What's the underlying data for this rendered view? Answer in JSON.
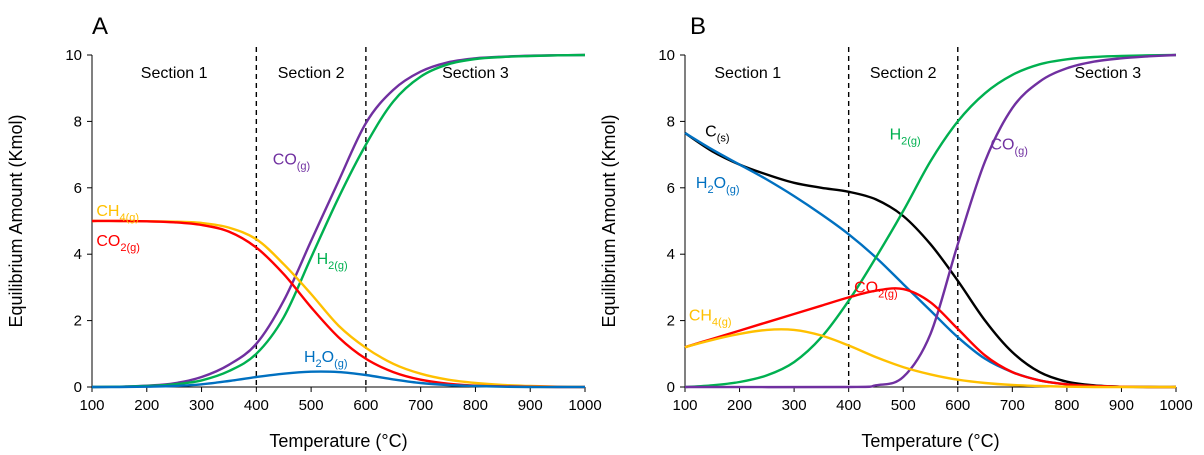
{
  "figure": {
    "background": "#ffffff"
  },
  "chart_data": [
    {
      "type": "line",
      "panel": "A",
      "xlabel": "Temperature (°C)",
      "ylabel": "Equilibrium Amount (Kmol)",
      "xlim": [
        100,
        1000
      ],
      "ylim": [
        0,
        10
      ],
      "xticks": [
        100,
        200,
        300,
        400,
        500,
        600,
        700,
        800,
        900,
        1000
      ],
      "yticks": [
        0,
        2,
        4,
        6,
        8,
        10
      ],
      "grid": false,
      "dividers": [
        400,
        600
      ],
      "sections": [
        {
          "label": "Section 1",
          "x": 250,
          "y": 9.3
        },
        {
          "label": "Section 2",
          "x": 500,
          "y": 9.3
        },
        {
          "label": "Section 3",
          "x": 800,
          "y": 9.3
        }
      ],
      "series": [
        {
          "main": "CO",
          "sub": "(g)",
          "color": "#7030a0",
          "label_pos": [
            430,
            6.7
          ],
          "x": [
            100,
            150,
            200,
            250,
            300,
            350,
            400,
            450,
            500,
            550,
            600,
            650,
            700,
            750,
            800,
            850,
            900,
            950,
            1000
          ],
          "y": [
            0,
            0.01,
            0.04,
            0.11,
            0.3,
            0.67,
            1.3,
            2.6,
            4.4,
            6.2,
            7.95,
            8.95,
            9.5,
            9.78,
            9.9,
            9.95,
            9.98,
            9.99,
            10
          ]
        },
        {
          "main": "H",
          "sub": "2(g)",
          "color": "#00b050",
          "label_pos": [
            510,
            3.7
          ],
          "x": [
            100,
            150,
            200,
            250,
            300,
            350,
            400,
            450,
            500,
            550,
            600,
            650,
            700,
            750,
            800,
            850,
            900,
            950,
            1000
          ],
          "y": [
            0,
            0.01,
            0.03,
            0.08,
            0.2,
            0.48,
            1.0,
            2.1,
            3.9,
            5.7,
            7.3,
            8.6,
            9.35,
            9.72,
            9.88,
            9.94,
            9.97,
            9.99,
            10
          ]
        },
        {
          "main": "CH",
          "sub": "4(g)",
          "color": "#ffc000",
          "label_pos": [
            108,
            5.15
          ],
          "x": [
            100,
            150,
            200,
            250,
            300,
            350,
            400,
            450,
            500,
            550,
            600,
            650,
            700,
            750,
            800,
            850,
            900,
            950,
            1000
          ],
          "y": [
            5,
            5,
            4.99,
            4.98,
            4.94,
            4.8,
            4.45,
            3.7,
            2.8,
            1.85,
            1.18,
            0.7,
            0.4,
            0.22,
            0.12,
            0.06,
            0.03,
            0.01,
            0
          ]
        },
        {
          "main": "CO",
          "sub": "2(g)",
          "color": "#ff0000",
          "label_pos": [
            108,
            4.25
          ],
          "x": [
            100,
            150,
            200,
            250,
            300,
            350,
            400,
            450,
            500,
            550,
            600,
            650,
            700,
            750,
            800,
            850,
            900,
            950,
            1000
          ],
          "y": [
            5,
            5,
            4.99,
            4.96,
            4.88,
            4.68,
            4.2,
            3.4,
            2.4,
            1.5,
            0.85,
            0.45,
            0.22,
            0.1,
            0.04,
            0.02,
            0.01,
            0,
            0
          ]
        },
        {
          "main": "H",
          "sub": "2",
          "main2": "O",
          "sub2": "(g)",
          "color": "#0070c0",
          "label_pos": [
            487,
            0.75
          ],
          "x": [
            100,
            150,
            200,
            250,
            300,
            350,
            400,
            450,
            500,
            550,
            600,
            650,
            700,
            750,
            800,
            850,
            900,
            950,
            1000
          ],
          "y": [
            0,
            0,
            0.01,
            0.03,
            0.08,
            0.18,
            0.3,
            0.4,
            0.46,
            0.45,
            0.36,
            0.23,
            0.12,
            0.06,
            0.03,
            0.01,
            0,
            0,
            0
          ]
        }
      ]
    },
    {
      "type": "line",
      "panel": "B",
      "xlabel": "Temperature (°C)",
      "ylabel": "Equilibrium Amount (Kmol)",
      "xlim": [
        100,
        1000
      ],
      "ylim": [
        0,
        10
      ],
      "xticks": [
        100,
        200,
        300,
        400,
        500,
        600,
        700,
        800,
        900,
        1000
      ],
      "yticks": [
        0,
        2,
        4,
        6,
        8,
        10
      ],
      "grid": false,
      "dividers": [
        400,
        600
      ],
      "sections": [
        {
          "label": "Section 1",
          "x": 215,
          "y": 9.3
        },
        {
          "label": "Section 2",
          "x": 500,
          "y": 9.3
        },
        {
          "label": "Section 3",
          "x": 875,
          "y": 9.3
        }
      ],
      "series": [
        {
          "main": "C",
          "sub": "(s)",
          "color": "#000000",
          "label_pos": [
            137,
            7.55
          ],
          "x": [
            100,
            150,
            200,
            250,
            300,
            350,
            400,
            450,
            500,
            550,
            600,
            650,
            700,
            750,
            800,
            850,
            900,
            950,
            1000
          ],
          "y": [
            7.65,
            7.1,
            6.7,
            6.4,
            6.15,
            6.0,
            5.88,
            5.65,
            5.15,
            4.3,
            3.2,
            2.0,
            1.05,
            0.45,
            0.16,
            0.05,
            0.01,
            0,
            0
          ]
        },
        {
          "main": "H",
          "sub": "2",
          "main2": "O",
          "sub2": "(g)",
          "color": "#0070c0",
          "label_pos": [
            120,
            6.0
          ],
          "x": [
            100,
            150,
            200,
            250,
            300,
            350,
            400,
            450,
            500,
            550,
            600,
            650,
            700,
            750,
            800,
            850,
            900,
            950,
            1000
          ],
          "y": [
            7.65,
            7.15,
            6.7,
            6.25,
            5.75,
            5.2,
            4.6,
            3.9,
            3.1,
            2.3,
            1.5,
            0.85,
            0.45,
            0.2,
            0.08,
            0.03,
            0.01,
            0,
            0
          ]
        },
        {
          "main": "H",
          "sub": "2(g)",
          "color": "#00b050",
          "label_pos": [
            475,
            7.45
          ],
          "x": [
            100,
            150,
            200,
            250,
            300,
            350,
            400,
            450,
            500,
            550,
            600,
            650,
            700,
            750,
            800,
            850,
            900,
            950,
            1000
          ],
          "y": [
            0,
            0.05,
            0.15,
            0.35,
            0.75,
            1.5,
            2.6,
            3.9,
            5.3,
            6.8,
            8.0,
            8.85,
            9.4,
            9.72,
            9.87,
            9.94,
            9.97,
            9.99,
            10
          ]
        },
        {
          "main": "CO",
          "sub": "(g)",
          "color": "#7030a0",
          "label_pos": [
            660,
            7.15
          ],
          "x": [
            100,
            400,
            450,
            500,
            550,
            600,
            650,
            700,
            750,
            800,
            850,
            900,
            950,
            1000
          ],
          "y": [
            0,
            0,
            0.05,
            0.3,
            1.6,
            4.3,
            6.8,
            8.4,
            9.2,
            9.6,
            9.8,
            9.9,
            9.96,
            10
          ]
        },
        {
          "main": "CO",
          "sub": "2(g)",
          "color": "#ff0000",
          "label_pos": [
            410,
            2.85
          ],
          "x": [
            100,
            150,
            200,
            250,
            300,
            350,
            400,
            450,
            500,
            550,
            600,
            650,
            700,
            750,
            800,
            850,
            900,
            950,
            1000
          ],
          "y": [
            1.2,
            1.45,
            1.7,
            1.95,
            2.2,
            2.45,
            2.7,
            2.9,
            2.95,
            2.55,
            1.75,
            0.95,
            0.45,
            0.2,
            0.08,
            0.03,
            0.01,
            0,
            0
          ]
        },
        {
          "main": "CH",
          "sub": "4(g)",
          "color": "#ffc000",
          "label_pos": [
            107,
            2.0
          ],
          "x": [
            100,
            150,
            200,
            250,
            300,
            350,
            400,
            450,
            500,
            550,
            600,
            650,
            700,
            750,
            800,
            850,
            900,
            950,
            1000
          ],
          "y": [
            1.2,
            1.42,
            1.6,
            1.72,
            1.72,
            1.55,
            1.25,
            0.9,
            0.6,
            0.38,
            0.22,
            0.12,
            0.06,
            0.03,
            0.01,
            0,
            0,
            0,
            0
          ]
        }
      ]
    }
  ]
}
